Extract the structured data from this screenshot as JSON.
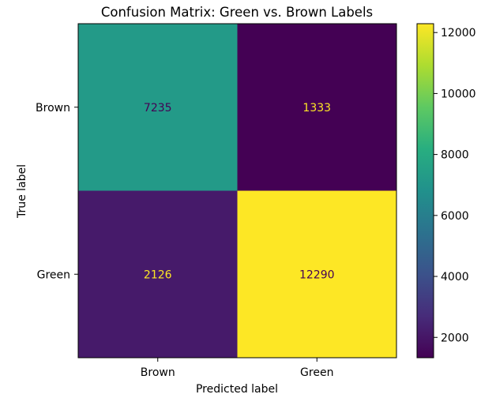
{
  "chart_data": {
    "type": "heatmap",
    "title": "Confusion Matrix: Green vs. Brown Labels",
    "xlabel": "Predicted label",
    "ylabel": "True label",
    "x_categories": [
      "Brown",
      "Green"
    ],
    "y_categories": [
      "Brown",
      "Green"
    ],
    "values": [
      [
        7235,
        1333
      ],
      [
        2126,
        12290
      ]
    ],
    "colormap": "viridis",
    "colorbar": {
      "range": [
        1333,
        12290
      ],
      "ticks": [
        2000,
        4000,
        6000,
        8000,
        10000,
        12000
      ],
      "tick_labels": [
        "2000",
        "4000",
        "6000",
        "8000",
        "10000",
        "12000"
      ]
    },
    "text_colors": {
      "dark_background": "#fde725",
      "light_background": "#440154"
    }
  }
}
